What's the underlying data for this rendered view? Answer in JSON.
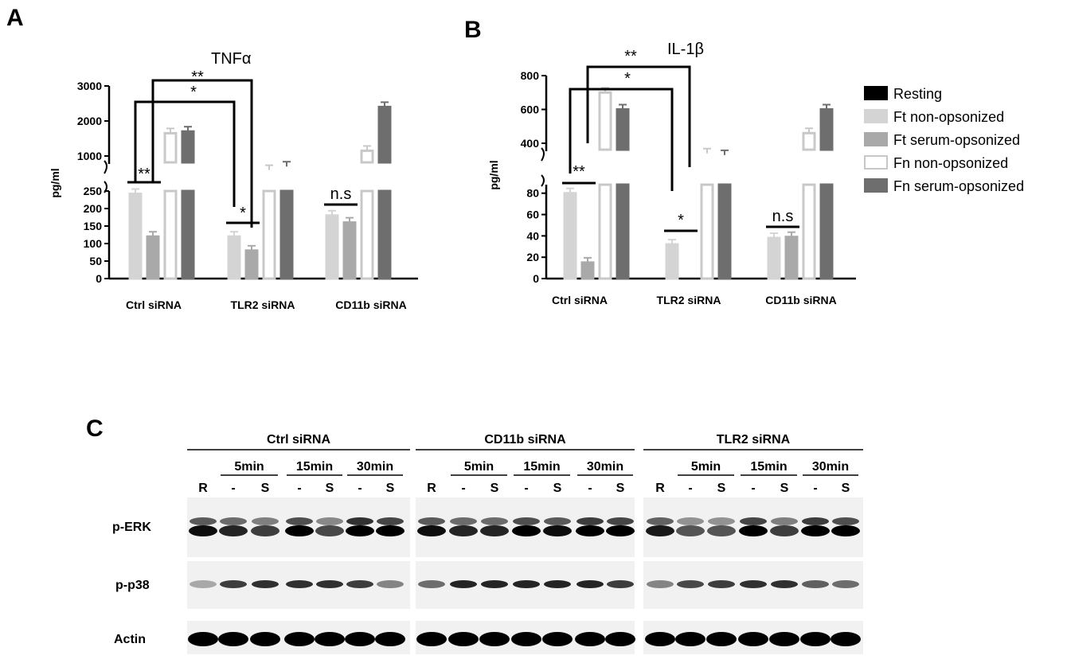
{
  "panels": {
    "A": "A",
    "B": "B",
    "C": "C"
  },
  "legend": [
    {
      "name": "Resting",
      "fill": "#000000",
      "stroke": "#000000"
    },
    {
      "name": "Ft non-opsonized",
      "fill": "#d4d4d4",
      "stroke": "#d4d4d4"
    },
    {
      "name": "Ft serum-opsonized",
      "fill": "#a9a9a9",
      "stroke": "#a9a9a9"
    },
    {
      "name": "Fn non-opsonized",
      "fill": "#ffffff",
      "stroke": "#c8c8c8"
    },
    {
      "name": "Fn serum-opsonized",
      "fill": "#6e6e6e",
      "stroke": "#6e6e6e"
    }
  ],
  "chart_data": [
    {
      "type": "bar",
      "title": "TNFα",
      "ylabel": "pg/ml",
      "categories": [
        "Ctrl siRNA",
        "TLR2 siRNA",
        "CD11b siRNA"
      ],
      "axis_breaks": true,
      "lower_ticks": [
        "0",
        "50",
        "100",
        "150",
        "200",
        "250"
      ],
      "upper_ticks": [
        "1000",
        "2000",
        "3000"
      ],
      "series": [
        {
          "values": [
            0,
            0,
            0
          ]
        },
        {
          "values": [
            242,
            120,
            180
          ]
        },
        {
          "values": [
            120,
            80,
            160
          ]
        },
        {
          "values": [
            1650,
            600,
            1150
          ]
        },
        {
          "values": [
            1700,
            700,
            2400
          ]
        }
      ],
      "significance": [
        {
          "label": "**",
          "between": "Ctrl siRNA Ft non-opsonized vs Ft serum-opsonized"
        },
        {
          "label": "*",
          "between": "TLR2 siRNA Ft non-opsonized vs Ft serum-opsonized"
        },
        {
          "label": "n.s",
          "between": "CD11b siRNA Ft non-opsonized vs Ft serum-opsonized"
        },
        {
          "label": "*",
          "between": "Ctrl siRNA vs TLR2 siRNA Ft non-opsonized"
        },
        {
          "label": "**",
          "between": "Ctrl siRNA vs TLR2 siRNA Ft serum-opsonized"
        }
      ]
    },
    {
      "type": "bar",
      "title": "IL-1β",
      "ylabel": "pg/ml",
      "categories": [
        "Ctrl siRNA",
        "TLR2 siRNA",
        "CD11b siRNA"
      ],
      "axis_breaks": true,
      "lower_ticks": [
        "0",
        "20",
        "40",
        "60",
        "80"
      ],
      "upper_ticks": [
        "400",
        "600",
        "800"
      ],
      "series": [
        {
          "values": [
            0,
            0,
            0
          ]
        },
        {
          "values": [
            80,
            32,
            38
          ]
        },
        {
          "values": [
            15,
            0,
            39
          ]
        },
        {
          "values": [
            700,
            340,
            460
          ]
        },
        {
          "values": [
            600,
            330,
            600
          ]
        }
      ],
      "significance": [
        {
          "label": "**",
          "between": "Ctrl siRNA Ft non-opsonized vs Ft serum-opsonized"
        },
        {
          "label": "*",
          "between": "TLR2 siRNA Ft non-opsonized vs Ft serum-opsonized"
        },
        {
          "label": "n.s",
          "between": "CD11b siRNA Ft non-opsonized vs Ft serum-opsonized"
        },
        {
          "label": "*",
          "between": "Ctrl siRNA vs TLR2 siRNA Ft non-opsonized"
        },
        {
          "label": "**",
          "between": "Ctrl siRNA vs TLR2 siRNA Ft serum-opsonized"
        }
      ]
    }
  ],
  "blot": {
    "groups": [
      "Ctrl siRNA",
      "CD11b siRNA",
      "TLR2 siRNA"
    ],
    "times": [
      "5min",
      "15min",
      "30min"
    ],
    "lanes": [
      "R",
      "-",
      "S",
      "-",
      "S",
      "-",
      "S"
    ],
    "rows": [
      "p-ERK",
      "p-p38",
      "Actin"
    ],
    "intensity": {
      "p-ERK": [
        [
          0.8,
          0.7,
          0.6,
          0.85,
          0.55,
          1.0,
          0.9
        ],
        [
          0.8,
          0.7,
          0.7,
          0.85,
          0.8,
          0.95,
          0.9
        ],
        [
          0.75,
          0.5,
          0.5,
          0.9,
          0.6,
          0.95,
          0.85
        ]
      ],
      "p-p38": [
        [
          0.3,
          0.75,
          0.8,
          0.8,
          0.8,
          0.75,
          0.45
        ],
        [
          0.55,
          0.85,
          0.85,
          0.85,
          0.85,
          0.85,
          0.75
        ],
        [
          0.45,
          0.7,
          0.75,
          0.8,
          0.8,
          0.6,
          0.55
        ]
      ],
      "Actin": [
        [
          1,
          1,
          1,
          1,
          1,
          1,
          1
        ],
        [
          1,
          1,
          1,
          1,
          1,
          1,
          1
        ],
        [
          1,
          1,
          1,
          1,
          1,
          1,
          1
        ]
      ]
    }
  }
}
